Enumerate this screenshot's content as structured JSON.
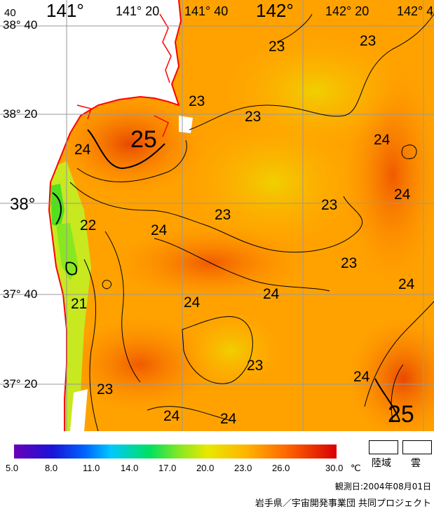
{
  "map": {
    "lon_labels": [
      {
        "text": "141°",
        "major": true
      },
      {
        "text": "141° 20",
        "major": false
      },
      {
        "text": "141° 40",
        "major": false
      },
      {
        "text": "142°",
        "major": true
      },
      {
        "text": "142° 20",
        "major": false
      },
      {
        "text": "142° 4",
        "major": false
      }
    ],
    "lat_labels": [
      {
        "text": "38° 40",
        "major": false
      },
      {
        "text": "38° 20",
        "major": false
      },
      {
        "text": "38°",
        "major": true
      },
      {
        "text": "37° 40",
        "major": false
      },
      {
        "text": "37° 20",
        "major": false
      }
    ],
    "corner_label": "40",
    "contour_labels": [
      "23",
      "23",
      "23",
      "23",
      "25",
      "24",
      "24",
      "24",
      "23",
      "23",
      "24",
      "22",
      "24",
      "23",
      "24",
      "21",
      "24",
      "23",
      "24",
      "23",
      "24",
      "24",
      "24",
      "25"
    ],
    "colors": {
      "land": "#ffffff",
      "coastline": "#ff0000",
      "grid": "#999999",
      "contour": "#000000"
    }
  },
  "colorbar": {
    "ticks": [
      "5.0",
      "8.0",
      "11.0",
      "14.0",
      "17.0",
      "20.0",
      "23.0",
      "26.0",
      "30.0"
    ],
    "unit": "℃",
    "colors": [
      "#6a00b8",
      "#0064ff",
      "#00c8ff",
      "#00e060",
      "#e8e800",
      "#ffb400",
      "#ff6a00",
      "#d80000"
    ]
  },
  "legend": {
    "land": "陸域",
    "cloud": "雲"
  },
  "observation_date": "観測日:2004年08月01日",
  "credit": "岩手県／宇宙開発事業団 共同プロジェクト"
}
